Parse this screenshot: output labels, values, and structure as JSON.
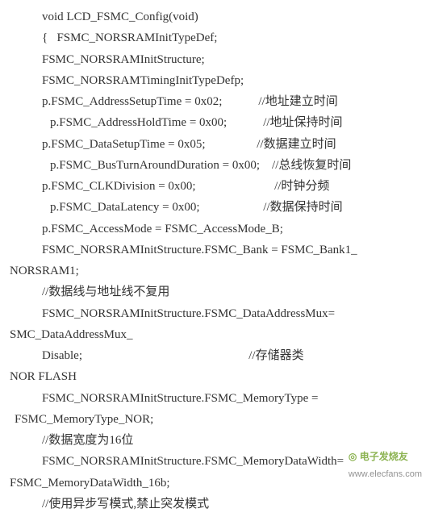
{
  "lines": [
    {
      "cls": "indent-1",
      "text": "void LCD_FSMC_Config(void)"
    },
    {
      "cls": "indent-1",
      "text": "{   FSMC_NORSRAMInitTypeDef;"
    },
    {
      "cls": "indent-1",
      "text": "FSMC_NORSRAMInitStructure;"
    },
    {
      "cls": "indent-1",
      "text": "FSMC_NORSRAMTimingInitTypeDefp;"
    },
    {
      "cls": "indent-1",
      "text": "p.FSMC_AddressSetupTime = 0x02;            //地址建立时间"
    },
    {
      "cls": "indent-2",
      "text": "p.FSMC_AddressHoldTime = 0x00;            //地址保持时间"
    },
    {
      "cls": "indent-1",
      "text": "p.FSMC_DataSetupTime = 0x05;                 //数据建立时间"
    },
    {
      "cls": "indent-2",
      "text": "p.FSMC_BusTurnAroundDuration = 0x00;    //总线恢复时间"
    },
    {
      "cls": "indent-1",
      "text": "p.FSMC_CLKDivision = 0x00;                          //时钟分频"
    },
    {
      "cls": "indent-2",
      "text": "p.FSMC_DataLatency = 0x00;                     //数据保持时间"
    },
    {
      "cls": "indent-1",
      "text": "p.FSMC_AccessMode = FSMC_AccessMode_B;"
    },
    {
      "cls": "indent-1",
      "text": "FSMC_NORSRAMInitStructure.FSMC_Bank = FSMC_Bank1_"
    },
    {
      "cls": "indent-0",
      "text": "NORSRAM1;"
    },
    {
      "cls": "indent-1",
      "text": "//数据线与地址线不复用"
    },
    {
      "cls": "indent-1",
      "text": "FSMC_NORSRAMInitStructure.FSMC_DataAddressMux="
    },
    {
      "cls": "indent-0",
      "text": "SMC_DataAddressMux_"
    },
    {
      "cls": "indent-1",
      "text": "Disable;                                                       //存储器类"
    },
    {
      "cls": "indent-0",
      "text": "NOR FLASH"
    },
    {
      "cls": "indent-1",
      "text": "FSMC_NORSRAMInitStructure.FSMC_MemoryType ="
    },
    {
      "cls": "indent-05",
      "text": "FSMC_MemoryType_NOR;"
    },
    {
      "cls": "indent-1",
      "text": "//数据宽度为16位"
    },
    {
      "cls": "indent-1",
      "text": "FSMC_NORSRAMInitStructure.FSMC_MemoryDataWidth="
    },
    {
      "cls": "indent-0",
      "text": "FSMC_MemoryDataWidth_16b;"
    },
    {
      "cls": "indent-1",
      "text": "//使用异步写模式,禁止突发模式"
    }
  ],
  "watermark": {
    "brand": "电子发烧友",
    "site": "www.elecfans.com"
  }
}
